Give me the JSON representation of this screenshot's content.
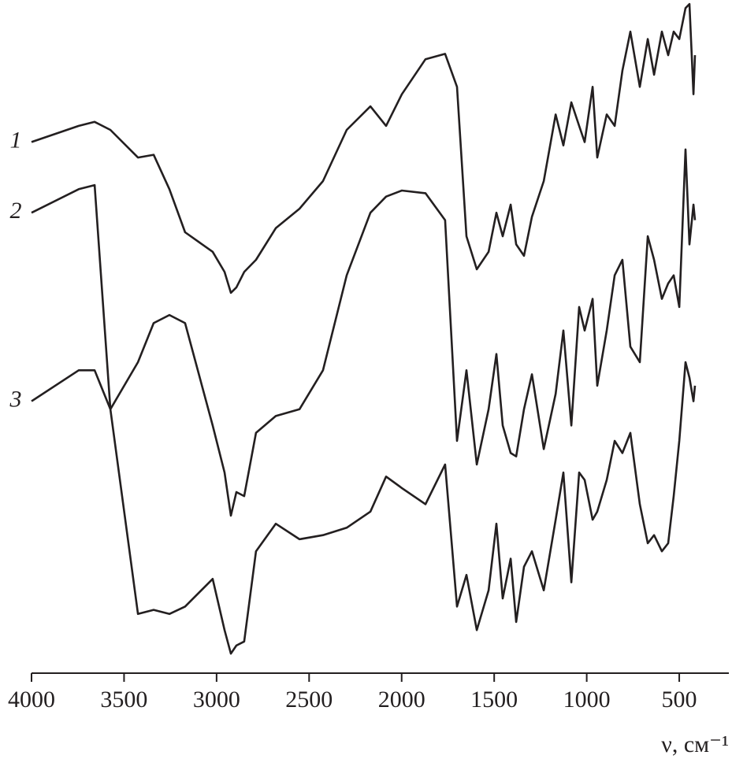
{
  "chart_data": {
    "type": "line",
    "x_label": "ν, см⁻¹",
    "xlim": [
      4000,
      232
    ],
    "xticks": [
      4000,
      3500,
      3000,
      2500,
      2000,
      1500,
      1000,
      500
    ],
    "ylim": [
      0,
      100
    ],
    "x": [
      4000,
      3745,
      3659,
      3574,
      3425,
      3340,
      3255,
      3170,
      3021,
      2957,
      2923,
      2893,
      2851,
      2787,
      2680,
      2552,
      2425,
      2297,
      2169,
      2084,
      1999,
      1871,
      1765,
      1701,
      1650,
      1594,
      1530,
      1488,
      1454,
      1411,
      1381,
      1339,
      1296,
      1232,
      1168,
      1126,
      1083,
      1041,
      1011,
      968,
      943,
      892,
      849,
      807,
      764,
      713,
      670,
      636,
      594,
      560,
      530,
      500,
      466,
      445,
      423,
      415
    ],
    "series": [
      {
        "name": "1",
        "color": "#231f20",
        "values": [
          78.9,
          81.3,
          81.9,
          80.7,
          76.6,
          77.0,
          71.9,
          65.5,
          62.6,
          59.6,
          56.5,
          57.3,
          59.6,
          61.4,
          66.1,
          69.0,
          73.1,
          80.7,
          84.2,
          81.3,
          86.0,
          91.2,
          92.0,
          87.1,
          64.9,
          60.0,
          62.6,
          68.4,
          64.9,
          69.6,
          63.7,
          62.0,
          67.8,
          73.1,
          83.0,
          78.4,
          84.8,
          81.3,
          78.9,
          87.1,
          76.6,
          83.0,
          81.3,
          89.5,
          95.3,
          87.1,
          94.2,
          88.9,
          95.3,
          91.8,
          95.3,
          94.2,
          98.8,
          99.4,
          86.0,
          91.8
        ]
      },
      {
        "name": "2",
        "color": "#231f20",
        "values": [
          68.4,
          71.9,
          72.5,
          39.2,
          46.2,
          52.0,
          53.2,
          52.0,
          36.8,
          29.8,
          23.4,
          26.9,
          26.3,
          35.7,
          38.2,
          39.2,
          45.0,
          59.1,
          68.4,
          70.8,
          71.7,
          71.3,
          67.3,
          34.5,
          45.0,
          31.0,
          39.2,
          47.4,
          36.8,
          32.7,
          32.2,
          39.2,
          44.4,
          33.3,
          41.5,
          50.9,
          36.8,
          54.4,
          50.9,
          55.6,
          42.7,
          50.9,
          59.1,
          61.4,
          48.5,
          46.2,
          64.9,
          61.4,
          55.6,
          57.9,
          59.1,
          54.4,
          77.8,
          63.7,
          69.6,
          67.3
        ]
      },
      {
        "name": "3",
        "color": "#231f20",
        "values": [
          40.4,
          45.0,
          45.0,
          39.2,
          8.8,
          9.4,
          8.8,
          9.9,
          14.0,
          6.4,
          2.9,
          4.1,
          4.7,
          18.1,
          22.2,
          19.9,
          20.5,
          21.6,
          24.0,
          29.2,
          27.5,
          25.1,
          31.0,
          9.9,
          14.6,
          6.4,
          12.3,
          22.2,
          11.1,
          17.0,
          7.6,
          15.8,
          18.1,
          12.3,
          22.8,
          29.8,
          13.5,
          29.8,
          28.7,
          22.8,
          24.0,
          28.7,
          34.5,
          32.7,
          35.7,
          25.1,
          19.3,
          20.5,
          18.1,
          19.3,
          26.3,
          34.5,
          46.2,
          43.9,
          40.4,
          42.7
        ]
      }
    ]
  }
}
